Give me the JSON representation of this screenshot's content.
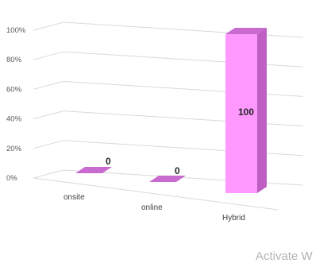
{
  "chart_data": {
    "type": "bar",
    "categories": [
      "onsite",
      "online",
      "Hybrid"
    ],
    "values": [
      0,
      0,
      100
    ],
    "data_labels": [
      "0",
      "0",
      "100"
    ],
    "ylim": [
      0,
      100
    ],
    "y_ticks": [
      "0%",
      "20%",
      "40%",
      "60%",
      "80%",
      "100%"
    ],
    "grid": true,
    "three_d": true,
    "colors": {
      "bar_front": "#ff99ff",
      "bar_side": "#bf5fc4",
      "bar_top": "#c86ad0",
      "gridline": "#d9d9d9"
    }
  },
  "watermark": "Activate W"
}
